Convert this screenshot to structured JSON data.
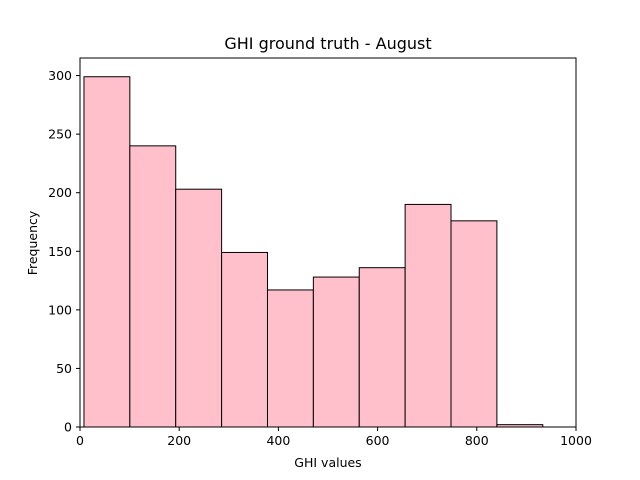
{
  "chart_data": {
    "type": "bar",
    "title": "GHI ground truth - August",
    "xlabel": "GHI values",
    "ylabel": "Frequency",
    "xlim": [
      0,
      1000
    ],
    "ylim": [
      0,
      315
    ],
    "xticks": [
      0,
      200,
      400,
      600,
      800,
      1000
    ],
    "yticks": [
      0,
      50,
      100,
      150,
      200,
      250,
      300
    ],
    "bin_edges": [
      8,
      100.5,
      193,
      285.5,
      378,
      470.5,
      563,
      655.5,
      748,
      840.5,
      933
    ],
    "values": [
      299,
      240,
      203,
      149,
      117,
      128,
      136,
      190,
      176,
      2
    ],
    "bar_color": "#ffc0cb",
    "edge_color": "#000000",
    "grid": false
  }
}
